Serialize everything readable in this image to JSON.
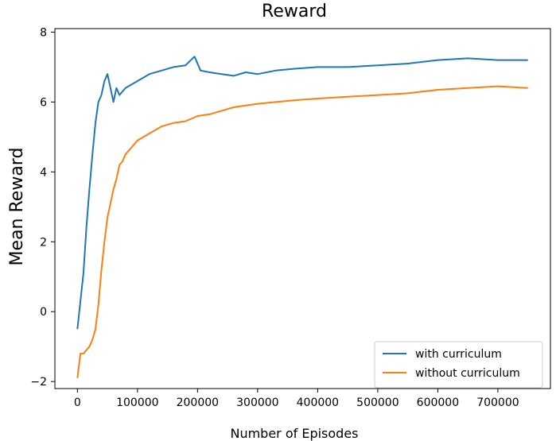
{
  "chart_data": {
    "type": "line",
    "title": "Reward",
    "xlabel": "Number of Episodes",
    "ylabel": "Mean Reward",
    "xlim": [
      -37500,
      787500
    ],
    "ylim": [
      -2.2,
      8.1
    ],
    "xticks": [
      0,
      100000,
      200000,
      300000,
      400000,
      500000,
      600000,
      700000
    ],
    "yticks": [
      -2,
      0,
      2,
      4,
      6,
      8
    ],
    "grid": false,
    "legend_position": "lower-right",
    "series": [
      {
        "name": " with curriculum",
        "color": "#1f77b4",
        "x": [
          0,
          5000,
          10000,
          15000,
          20000,
          25000,
          30000,
          35000,
          40000,
          45000,
          50000,
          55000,
          60000,
          65000,
          70000,
          80000,
          90000,
          100000,
          120000,
          140000,
          160000,
          180000,
          195000,
          205000,
          220000,
          240000,
          260000,
          280000,
          300000,
          330000,
          360000,
          400000,
          450000,
          500000,
          550000,
          600000,
          650000,
          700000,
          750000
        ],
        "y": [
          -0.5,
          0.3,
          1.1,
          2.4,
          3.5,
          4.5,
          5.4,
          6.0,
          6.2,
          6.6,
          6.8,
          6.4,
          6.0,
          6.4,
          6.2,
          6.4,
          6.5,
          6.6,
          6.8,
          6.9,
          7.0,
          7.05,
          7.3,
          6.9,
          6.85,
          6.8,
          6.75,
          6.85,
          6.8,
          6.9,
          6.95,
          7.0,
          7.0,
          7.05,
          7.1,
          7.2,
          7.25,
          7.2,
          7.2
        ]
      },
      {
        "name": "without curriculum",
        "color": "#ff7f0e",
        "x": [
          0,
          5000,
          10000,
          15000,
          20000,
          25000,
          30000,
          35000,
          40000,
          45000,
          50000,
          55000,
          60000,
          65000,
          70000,
          75000,
          80000,
          90000,
          100000,
          120000,
          140000,
          160000,
          180000,
          200000,
          220000,
          240000,
          260000,
          280000,
          300000,
          330000,
          360000,
          400000,
          450000,
          500000,
          550000,
          600000,
          650000,
          700000,
          750000
        ],
        "y": [
          -1.9,
          -1.2,
          -1.2,
          -1.1,
          -1.0,
          -0.8,
          -0.5,
          0.2,
          1.2,
          2.0,
          2.7,
          3.1,
          3.5,
          3.8,
          4.2,
          4.3,
          4.5,
          4.7,
          4.9,
          5.1,
          5.3,
          5.4,
          5.45,
          5.6,
          5.65,
          5.75,
          5.85,
          5.9,
          5.95,
          6.0,
          6.05,
          6.1,
          6.15,
          6.2,
          6.25,
          6.35,
          6.4,
          6.45,
          6.4
        ]
      }
    ]
  }
}
